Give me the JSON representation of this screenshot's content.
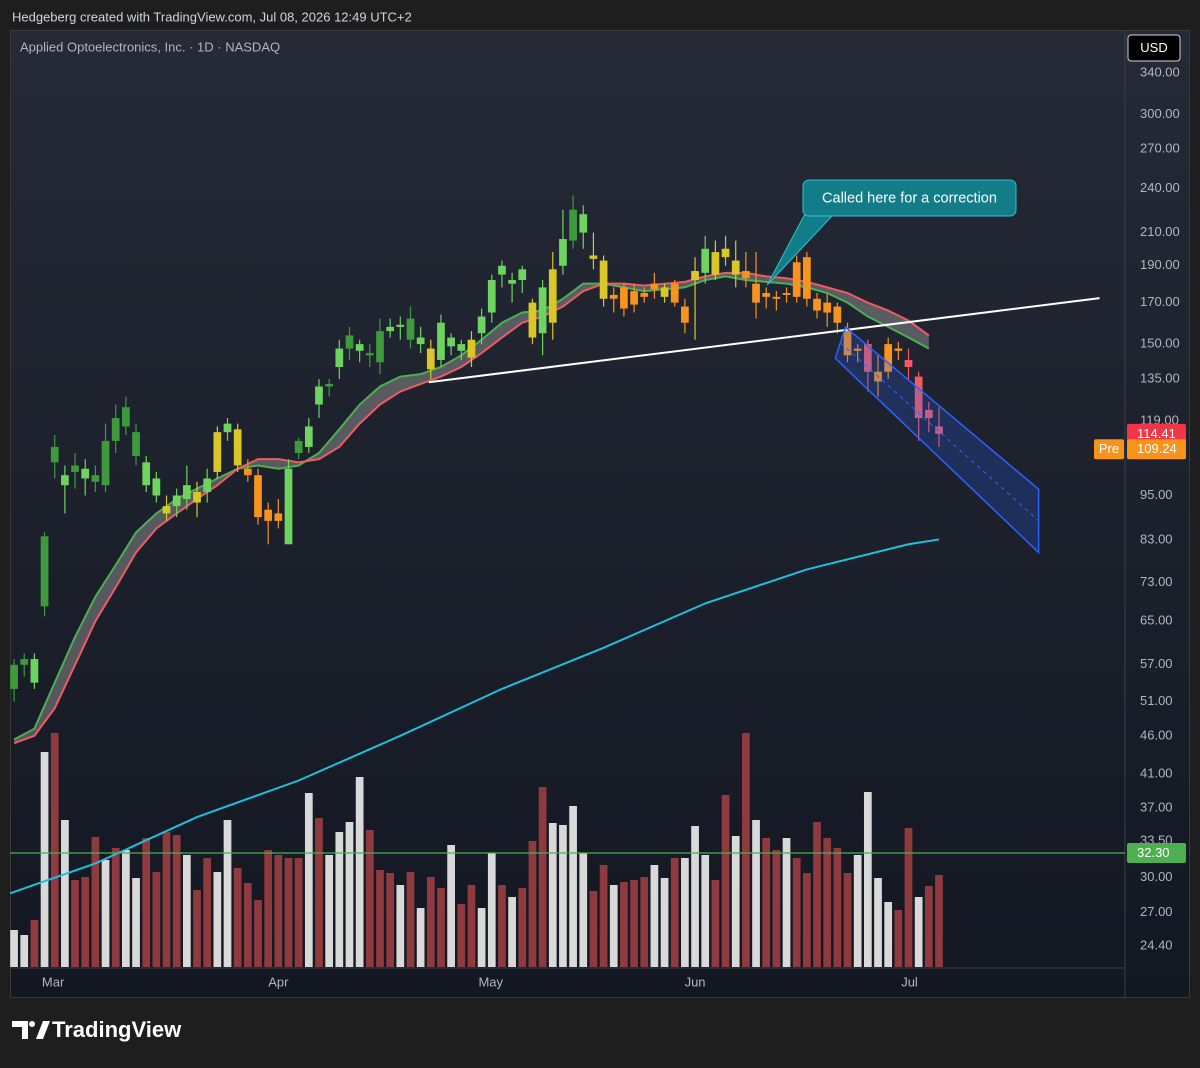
{
  "header": {
    "text": "Hedgeberg created with TradingView.com, Jul 08, 2026 12:49 UTC+2"
  },
  "footer": {
    "brand": "TradingView"
  },
  "chart_data": {
    "type": "candlestick",
    "title": "Applied Optoelectronics, Inc. · 1D · NASDAQ",
    "currency": "USD",
    "log_scale": true,
    "grid": false,
    "ylim": [
      22.9,
      387
    ],
    "xlim": [
      -0.4,
      109.3
    ],
    "yticks": [
      {
        "value": 340,
        "label": "340.00"
      },
      {
        "value": 300,
        "label": "300.00"
      },
      {
        "value": 270,
        "label": "270.00"
      },
      {
        "value": 240,
        "label": "240.00"
      },
      {
        "value": 210,
        "label": "210.00"
      },
      {
        "value": 190,
        "label": "190.00"
      },
      {
        "value": 170,
        "label": "170.00"
      },
      {
        "value": 150,
        "label": "150.00"
      },
      {
        "value": 135,
        "label": "135.00"
      },
      {
        "value": 119,
        "label": "119.00"
      },
      {
        "value": 95,
        "label": "95.00"
      },
      {
        "value": 83,
        "label": "83.00"
      },
      {
        "value": 73,
        "label": "73.00"
      },
      {
        "value": 65,
        "label": "65.00"
      },
      {
        "value": 57,
        "label": "57.00"
      },
      {
        "value": 51,
        "label": "51.00"
      },
      {
        "value": 46,
        "label": "46.00"
      },
      {
        "value": 41,
        "label": "41.00"
      },
      {
        "value": 37,
        "label": "37.00"
      },
      {
        "value": 33.5,
        "label": "33.50"
      },
      {
        "value": 30,
        "label": "30.00"
      },
      {
        "value": 27,
        "label": "27.00"
      },
      {
        "value": 24.4,
        "label": "24.40"
      }
    ],
    "xticks": [
      {
        "value": 3.84,
        "label": "Mar"
      },
      {
        "value": 26,
        "label": "Apr"
      },
      {
        "value": 46.9,
        "label": "May"
      },
      {
        "value": 67,
        "label": "Jun"
      },
      {
        "value": 88.1,
        "label": "Jul"
      }
    ],
    "open": [
      53,
      57,
      54,
      68,
      105,
      98,
      104,
      100,
      101,
      98,
      112,
      117,
      115,
      105,
      100,
      90,
      92,
      94,
      93,
      96,
      102,
      115,
      116,
      103,
      101,
      91,
      88,
      82,
      108,
      110,
      125,
      132,
      140,
      148,
      150,
      145,
      142,
      156,
      158,
      162,
      150,
      148,
      143,
      153,
      150,
      144,
      155,
      165,
      185,
      180,
      182,
      170,
      155,
      160,
      190,
      205,
      222,
      196,
      193,
      172,
      178,
      169,
      175,
      177,
      173,
      180,
      168,
      182,
      186,
      185,
      200,
      193,
      187,
      180,
      173,
      173,
      175,
      173,
      195,
      172,
      170,
      168,
      157,
      148,
      150,
      138,
      150,
      148,
      143,
      136,
      123,
      117
    ],
    "high": [
      58,
      59,
      59,
      85,
      114,
      104,
      108,
      106,
      104,
      118,
      125,
      128,
      118,
      107,
      102,
      95,
      97,
      104,
      99,
      103,
      117,
      120,
      118,
      106,
      103,
      93,
      94,
      106,
      113,
      120,
      135,
      135,
      152,
      158,
      152,
      150,
      162,
      162,
      163,
      168,
      158,
      152,
      164,
      155,
      152,
      156,
      167,
      185,
      193,
      186,
      190,
      172,
      182,
      198,
      225,
      235,
      228,
      210,
      196,
      178,
      180,
      180,
      178,
      186,
      180,
      182,
      172,
      195,
      208,
      205,
      208,
      205,
      198,
      198,
      178,
      176,
      178,
      196,
      198,
      175,
      175,
      170,
      160,
      150,
      152,
      145,
      153,
      151,
      148,
      138,
      126,
      124
    ],
    "low": [
      51,
      55,
      53,
      66,
      100,
      90,
      97,
      95,
      96,
      96,
      108,
      114,
      104,
      96,
      93,
      88,
      89,
      91,
      89,
      93,
      100,
      112,
      102,
      99,
      87,
      82,
      86,
      82,
      106,
      108,
      120,
      128,
      135,
      143,
      142,
      140,
      137,
      153,
      152,
      148,
      146,
      135,
      140,
      145,
      143,
      140,
      150,
      160,
      178,
      170,
      175,
      150,
      145,
      152,
      185,
      200,
      200,
      188,
      168,
      165,
      163,
      165,
      170,
      172,
      170,
      168,
      155,
      152,
      180,
      182,
      190,
      178,
      178,
      162,
      167,
      166,
      170,
      170,
      168,
      162,
      158,
      155,
      142,
      142,
      130,
      128,
      135,
      143,
      135,
      112,
      115,
      110
    ],
    "close": [
      57,
      58,
      58,
      84,
      110,
      101,
      102,
      103,
      99,
      112,
      120,
      124,
      107,
      98,
      95,
      92,
      95,
      98,
      96,
      100,
      115,
      118,
      104,
      101,
      89,
      88,
      90,
      103,
      112,
      117,
      132,
      133,
      148,
      154,
      147,
      146,
      156,
      158,
      159,
      152,
      153,
      139,
      160,
      149,
      147,
      152,
      163,
      182,
      190,
      182,
      188,
      153,
      178,
      188,
      206,
      225,
      210,
      194,
      172,
      174,
      167,
      176,
      173,
      180,
      178,
      170,
      160,
      187,
      200,
      198,
      195,
      185,
      183,
      170,
      175,
      172,
      174,
      192,
      172,
      166,
      165,
      160,
      145,
      147,
      138,
      134,
      138,
      147,
      140,
      120,
      120,
      114.41
    ],
    "colors": [
      "#3d9a3d",
      "#3d9a3d",
      "#6ed35f",
      "#3d9a3d",
      "#3d9a3d",
      "#6ed35f",
      "#3d9a3d",
      "#6ed35f",
      "#3d9a3d",
      "#3d9a3d",
      "#3d9a3d",
      "#3d9a3d",
      "#3d9a3d",
      "#6ed35f",
      "#6ed35f",
      "#d9c72a",
      "#6ed35f",
      "#6ed35f",
      "#d9c72a",
      "#6ed35f",
      "#d9c72a",
      "#6ed35f",
      "#d9c72a",
      "#f7931e",
      "#f7931e",
      "#f7931e",
      "#f7931e",
      "#6ed35f",
      "#3d9a3d",
      "#6ed35f",
      "#6ed35f",
      "#3d9a3d",
      "#6ed35f",
      "#3d9a3d",
      "#6ed35f",
      "#3d9a3d",
      "#3d9a3d",
      "#6ed35f",
      "#6ed35f",
      "#3d9a3d",
      "#6ed35f",
      "#d9c72a",
      "#6ed35f",
      "#6ed35f",
      "#6ed35f",
      "#d9c72a",
      "#6ed35f",
      "#6ed35f",
      "#6ed35f",
      "#6ed35f",
      "#6ed35f",
      "#d9c72a",
      "#6ed35f",
      "#d9c72a",
      "#6ed35f",
      "#3d9a3d",
      "#6ed35f",
      "#d9c72a",
      "#d9c72a",
      "#f7931e",
      "#f7931e",
      "#f7931e",
      "#f7931e",
      "#f7931e",
      "#d9c72a",
      "#f7931e",
      "#f7931e",
      "#d9c72a",
      "#6ed35f",
      "#d9c72a",
      "#d9c72a",
      "#d9c72a",
      "#f7931e",
      "#f7931e",
      "#f7931e",
      "#f7931e",
      "#f7931e",
      "#f7931e",
      "#f7931e",
      "#f7931e",
      "#f7931e",
      "#f7931e",
      "#f7931e",
      "#f7931e",
      "#f05b62",
      "#f7931e",
      "#f7931e",
      "#f7931e",
      "#f05b62",
      "#f05b62",
      "#f05b62",
      "#f05b62"
    ],
    "volume": {
      "ylim": [
        0,
        30
      ],
      "values": [
        3.7,
        3.2,
        4.7,
        21.5,
        23.4,
        14.7,
        8.7,
        9.0,
        13.0,
        10.7,
        11.9,
        11.7,
        8.9,
        12.9,
        9.5,
        13.5,
        13.2,
        11.2,
        7.7,
        10.9,
        9.5,
        14.7,
        9.9,
        8.4,
        6.7,
        11.7,
        11.2,
        10.9,
        10.9,
        17.4,
        14.9,
        11.2,
        13.5,
        14.5,
        19.0,
        13.7,
        9.7,
        9.4,
        8.2,
        9.5,
        5.9,
        9.0,
        7.9,
        12.2,
        6.3,
        8.2,
        5.9,
        11.4,
        8.2,
        7.0,
        7.9,
        12.6,
        18.0,
        14.4,
        14.2,
        16.1,
        11.4,
        7.6,
        10.2,
        8.2,
        8.5,
        8.7,
        9.0,
        10.2,
        8.9,
        10.9,
        10.9,
        14.1,
        11.2,
        8.7,
        17.2,
        13.1,
        23.4,
        14.7,
        12.9,
        11.7,
        12.9,
        10.9,
        9.4,
        14.5,
        12.9,
        11.9,
        9.4,
        11.2,
        17.5,
        8.9,
        6.5,
        5.7,
        13.9,
        7.0,
        8.1,
        9.2
      ],
      "colors": [
        "#d9d9d9",
        "#d9d9d9",
        "#8e3a3f",
        "#d9d9d9",
        "#8e3a3f",
        "#d9d9d9",
        "#8e3a3f",
        "#8e3a3f",
        "#8e3a3f",
        "#d9d9d9",
        "#8e3a3f",
        "#d9d9d9",
        "#d9d9d9",
        "#8e3a3f",
        "#8e3a3f",
        "#8e3a3f",
        "#8e3a3f",
        "#d9d9d9",
        "#8e3a3f",
        "#8e3a3f",
        "#d9d9d9",
        "#d9d9d9",
        "#8e3a3f",
        "#8e3a3f",
        "#8e3a3f",
        "#8e3a3f",
        "#8e3a3f",
        "#8e3a3f",
        "#8e3a3f",
        "#d9d9d9",
        "#8e3a3f",
        "#d9d9d9",
        "#d9d9d9",
        "#d9d9d9",
        "#d9d9d9",
        "#8e3a3f",
        "#8e3a3f",
        "#8e3a3f",
        "#d9d9d9",
        "#8e3a3f",
        "#d9d9d9",
        "#8e3a3f",
        "#8e3a3f",
        "#d9d9d9",
        "#8e3a3f",
        "#8e3a3f",
        "#d9d9d9",
        "#d9d9d9",
        "#8e3a3f",
        "#d9d9d9",
        "#8e3a3f",
        "#8e3a3f",
        "#8e3a3f",
        "#d9d9d9",
        "#d9d9d9",
        "#d9d9d9",
        "#d9d9d9",
        "#8e3a3f",
        "#8e3a3f",
        "#d9d9d9",
        "#8e3a3f",
        "#8e3a3f",
        "#8e3a3f",
        "#d9d9d9",
        "#d9d9d9",
        "#8e3a3f",
        "#d9d9d9",
        "#d9d9d9",
        "#d9d9d9",
        "#8e3a3f",
        "#8e3a3f",
        "#d9d9d9",
        "#8e3a3f",
        "#d9d9d9",
        "#8e3a3f",
        "#8e3a3f",
        "#d9d9d9",
        "#8e3a3f",
        "#8e3a3f",
        "#8e3a3f",
        "#8e3a3f",
        "#8e3a3f",
        "#8e3a3f",
        "#d9d9d9",
        "#d9d9d9",
        "#d9d9d9",
        "#d9d9d9",
        "#8e3a3f",
        "#8e3a3f",
        "#d9d9d9",
        "#8e3a3f",
        "#8e3a3f"
      ]
    },
    "ribbon_fill": "rgba(160,160,160,0.45)",
    "lines": [
      {
        "color": "#4caf50",
        "x": [
          0,
          2,
          4,
          6,
          8,
          10,
          12,
          14,
          16,
          18,
          20,
          22,
          24,
          26,
          28,
          30,
          32,
          34,
          36,
          38,
          40,
          42,
          44,
          46,
          48,
          50,
          52,
          54,
          56,
          58,
          60,
          62,
          64,
          66,
          68,
          70,
          72,
          74,
          76,
          78,
          80,
          82,
          84,
          86,
          88,
          90
        ],
        "values": [
          45.5,
          47,
          54,
          62,
          70,
          77,
          85,
          90,
          94,
          97,
          100,
          103,
          104,
          103,
          104,
          108,
          116,
          125,
          132,
          136,
          137,
          140,
          145,
          152,
          160,
          165,
          166,
          172,
          180,
          180,
          178,
          176,
          177,
          178,
          182,
          184,
          182,
          181,
          180,
          178,
          175,
          170,
          163,
          158,
          153,
          148
        ]
      },
      {
        "color": "#f05b62",
        "x": [
          0,
          2,
          4,
          6,
          8,
          10,
          12,
          14,
          16,
          18,
          20,
          22,
          24,
          26,
          28,
          30,
          32,
          34,
          36,
          38,
          40,
          42,
          44,
          46,
          48,
          50,
          52,
          54,
          56,
          58,
          60,
          62,
          64,
          66,
          68,
          70,
          72,
          74,
          76,
          78,
          80,
          82,
          84,
          86,
          88,
          90
        ],
        "values": [
          45,
          46,
          50,
          57,
          65,
          72,
          80,
          86,
          90,
          94,
          98,
          103,
          106,
          106,
          105,
          106,
          110,
          118,
          125,
          130,
          133,
          136,
          140,
          146,
          153,
          160,
          163,
          168,
          176,
          180,
          180,
          179,
          180,
          181,
          184,
          186,
          186,
          184,
          183,
          181,
          178,
          175,
          170,
          166,
          161,
          154
        ]
      },
      {
        "color": "#1ec0dc",
        "x": [
          -0.4,
          8,
          18,
          28,
          38,
          48,
          58,
          68,
          78,
          88,
          91
        ],
        "values": [
          28.6,
          31.3,
          36,
          40.2,
          46,
          53,
          60,
          68.6,
          76,
          82,
          83.2
        ]
      }
    ],
    "price_line": {
      "value": 32.3,
      "label": "32.30",
      "color": "#4caf50"
    },
    "last_price": {
      "value": 114.41,
      "label": "114.41",
      "color": "#f23645"
    },
    "premarket": {
      "tag": "Pre",
      "value": 109.24,
      "label": "109.24",
      "color": "#f7931a"
    },
    "trendline": {
      "color": "#ffffff",
      "points": [
        [
          40.8,
          133.7
        ],
        [
          106.8,
          172.3
        ]
      ]
    },
    "channel": {
      "color": "#2962ff",
      "upper": [
        [
          81.8,
          157.9
        ],
        [
          100.8,
          96.8
        ]
      ],
      "lower": [
        [
          80.8,
          143.7
        ],
        [
          100.8,
          80
        ]
      ]
    },
    "callout": {
      "text": "Called here for a correction",
      "anchor": [
        74.1,
        179.3
      ],
      "color": "#127d89"
    }
  }
}
